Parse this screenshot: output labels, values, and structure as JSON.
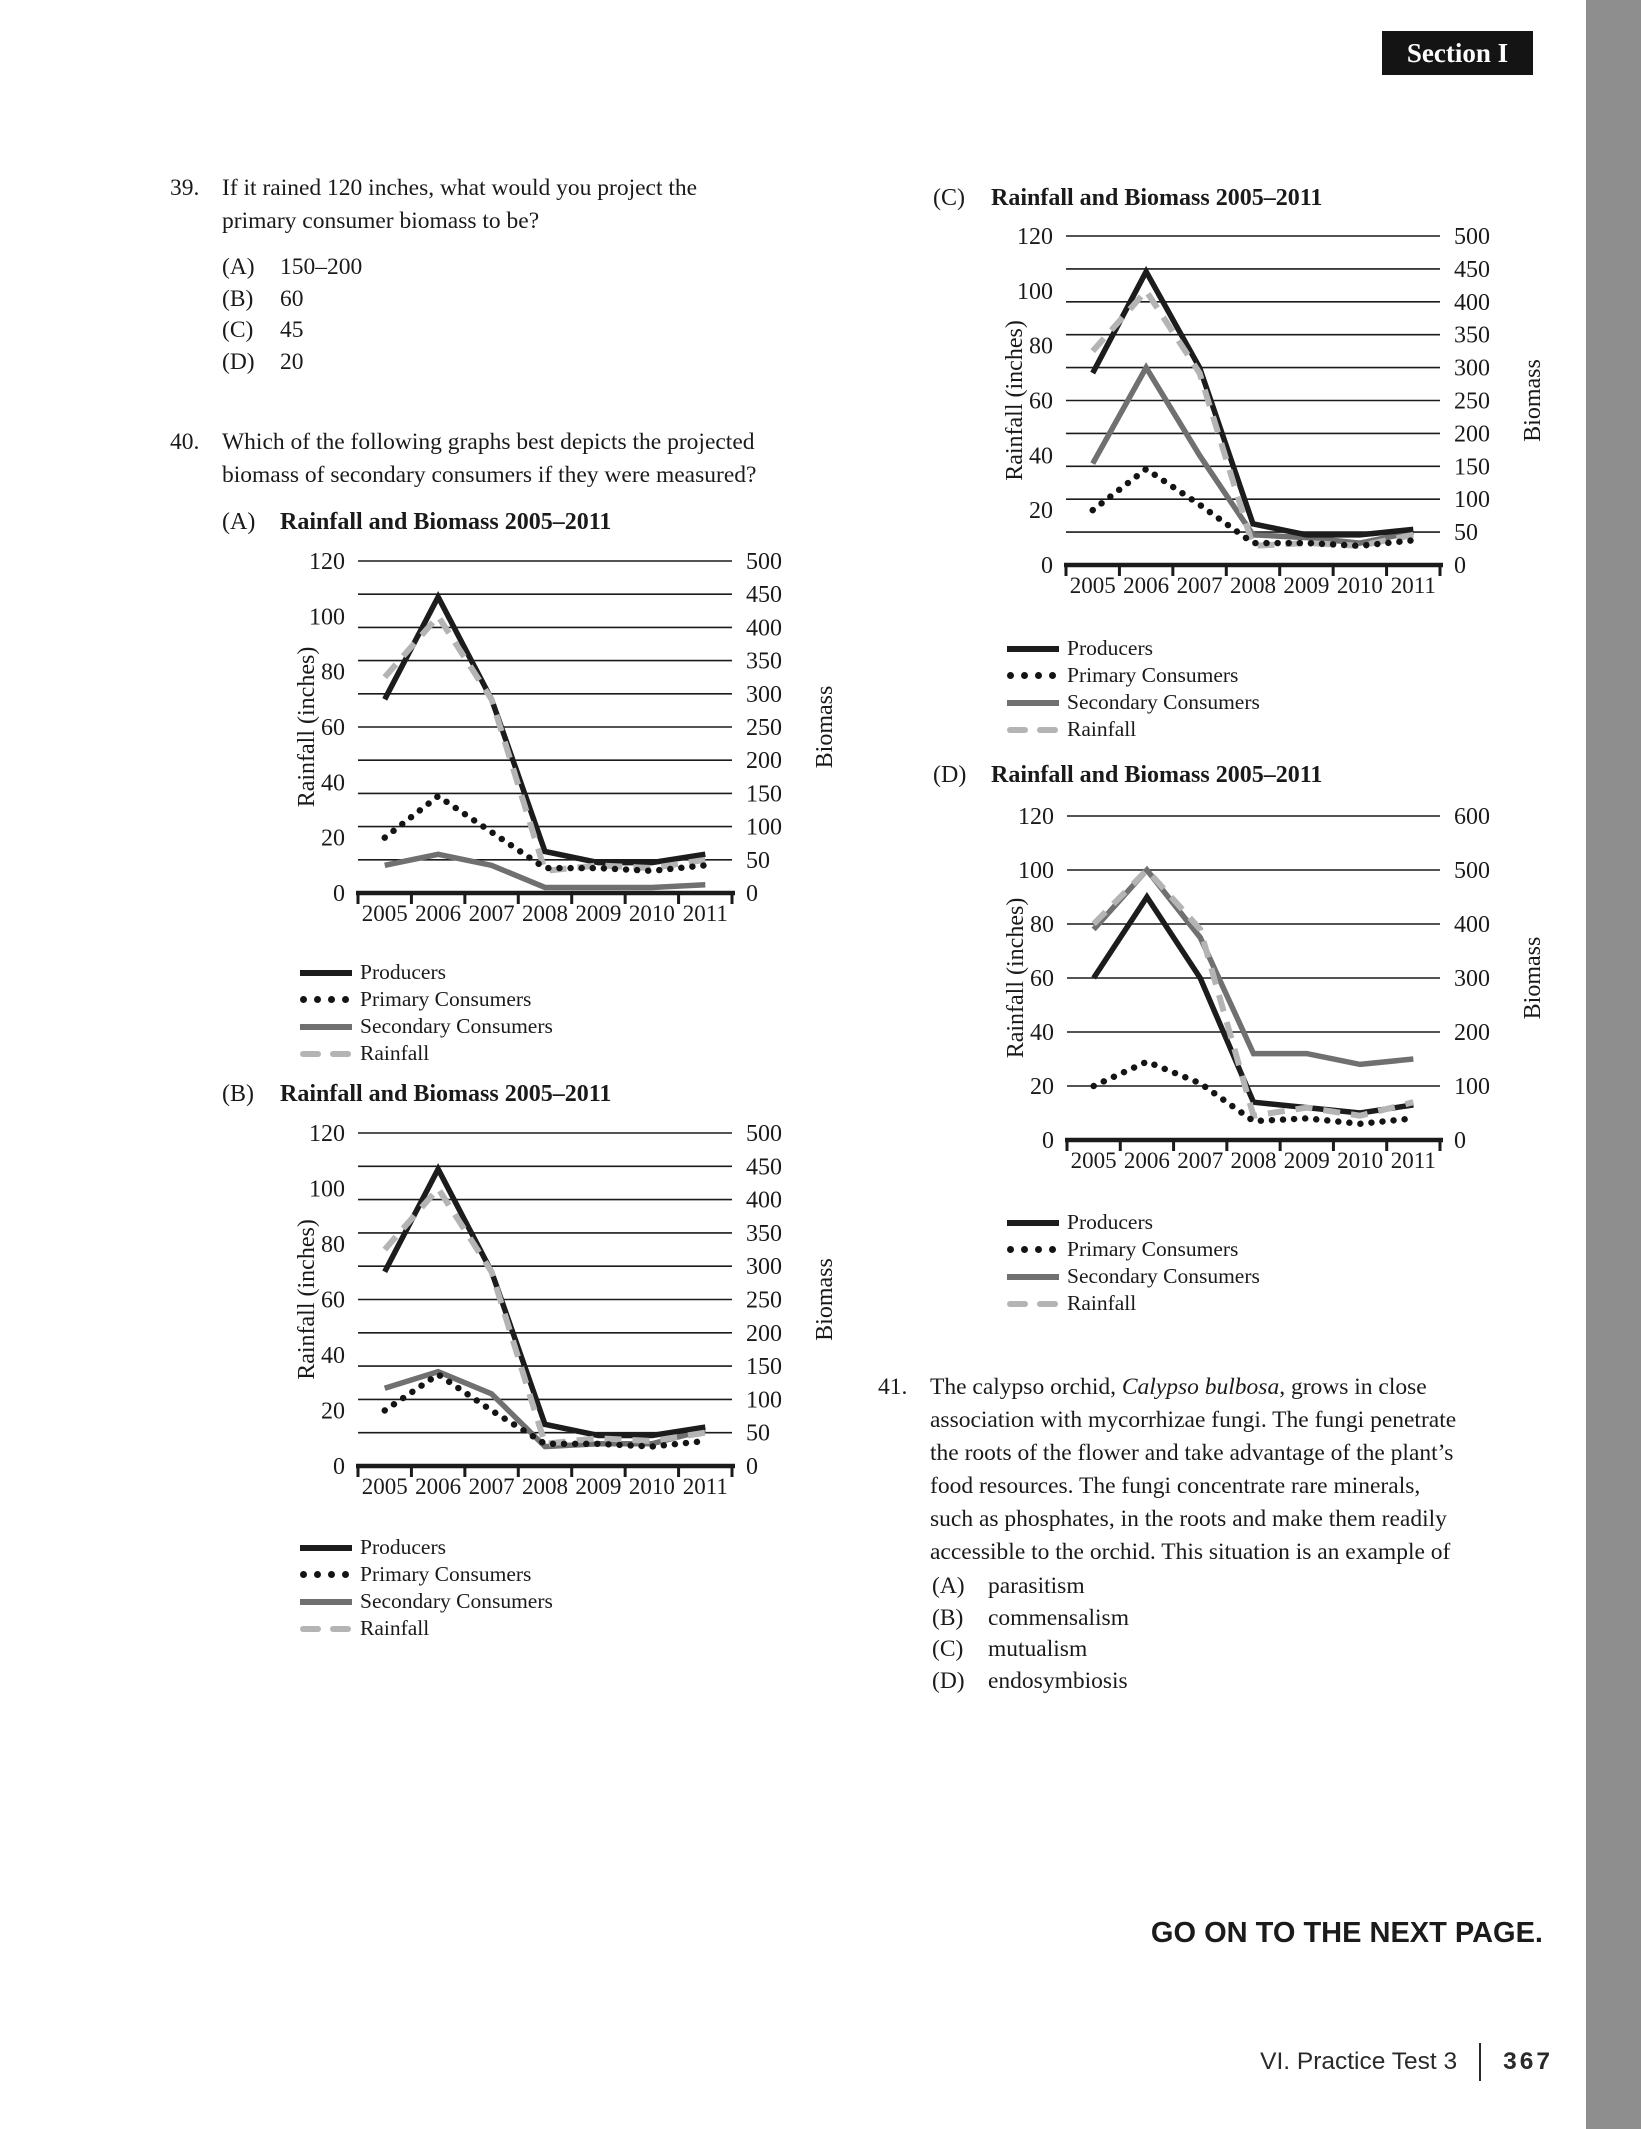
{
  "badge": {
    "text": "Section I"
  },
  "questions": {
    "q39": {
      "number": "39.",
      "lines": [
        "If it rained 120 inches, what would you project the",
        "primary consumer biomass to be?"
      ],
      "options": [
        {
          "letter": "(A)",
          "text": "150–200"
        },
        {
          "letter": "(B)",
          "text": "60"
        },
        {
          "letter": "(C)",
          "text": "45"
        },
        {
          "letter": "(D)",
          "text": "20"
        }
      ]
    },
    "q40": {
      "number": "40.",
      "lines": [
        "Which of the following graphs best depicts the projected",
        "biomass of secondary consumers if they were measured?"
      ]
    },
    "q41": {
      "number": "41.",
      "lines_parts": [
        [
          [
            "The calypso orchid, ",
            false
          ],
          [
            "Calypso bulbosa",
            true
          ],
          [
            ", grows in close",
            false
          ]
        ],
        [
          [
            "association with mycorrhizae fungi. The fungi penetrate",
            false
          ]
        ],
        [
          [
            "the roots of the flower and take advantage of the plant’s",
            false
          ]
        ],
        [
          [
            "food resources. The fungi concentrate rare minerals,",
            false
          ]
        ],
        [
          [
            "such as phosphates, in the roots and make them readily",
            false
          ]
        ],
        [
          [
            "accessible to the orchid. This situation is an example of",
            false
          ]
        ]
      ],
      "options": [
        {
          "letter": "(A)",
          "text": "parasitism"
        },
        {
          "letter": "(B)",
          "text": "commensalism"
        },
        {
          "letter": "(C)",
          "text": "mutualism"
        },
        {
          "letter": "(D)",
          "text": "endosymbiosis"
        }
      ]
    }
  },
  "legend_labels": [
    "Producers",
    "Primary Consumers",
    "Secondary Consumers",
    "Rainfall"
  ],
  "series_colors": {
    "producers": "#1c1c1c",
    "primary": "#141414",
    "secondary": "#707070",
    "rainfall": "#b4b4b4"
  },
  "chart_data": [
    {
      "id": "A",
      "option_letter": "(A)",
      "type": "line",
      "title": "Rainfall and Biomass 2005–2011",
      "x_categories": [
        "2005",
        "2006",
        "2007",
        "2008",
        "2009",
        "2010",
        "2011"
      ],
      "left_axis": {
        "label": "Rainfall (inches)",
        "min": 0,
        "max": 120,
        "ticks": [
          0,
          20,
          40,
          60,
          80,
          100,
          120
        ]
      },
      "right_axis": {
        "label": "Biomass",
        "min": 0,
        "max": 500,
        "ticks": [
          0,
          50,
          100,
          150,
          200,
          250,
          300,
          350,
          400,
          450,
          500
        ]
      },
      "grid_step_inches": 12,
      "units_note": "series values expressed in left-axis inches scale",
      "series": [
        {
          "name": "Producers",
          "style": "solid-black",
          "values": [
            70,
            107,
            70,
            15,
            11,
            11,
            14
          ]
        },
        {
          "name": "Primary Consumers",
          "style": "dotted-black",
          "values": [
            20,
            35,
            22,
            9,
            9,
            8,
            10
          ]
        },
        {
          "name": "Secondary Consumers",
          "style": "solid-gray",
          "values": [
            10,
            14,
            10,
            2,
            2,
            2,
            3
          ]
        },
        {
          "name": "Rainfall",
          "style": "dashed-lightgray",
          "values": [
            78,
            100,
            70,
            8,
            10,
            9,
            12
          ]
        }
      ]
    },
    {
      "id": "B",
      "option_letter": "(B)",
      "type": "line",
      "title": "Rainfall and Biomass 2005–2011",
      "x_categories": [
        "2005",
        "2006",
        "2007",
        "2008",
        "2009",
        "2010",
        "2011"
      ],
      "left_axis": {
        "label": "Rainfall (inches)",
        "min": 0,
        "max": 120,
        "ticks": [
          0,
          20,
          40,
          60,
          80,
          100,
          120
        ]
      },
      "right_axis": {
        "label": "Biomass",
        "min": 0,
        "max": 500,
        "ticks": [
          0,
          50,
          100,
          150,
          200,
          250,
          300,
          350,
          400,
          450,
          500
        ]
      },
      "grid_step_inches": 12,
      "units_note": "series values expressed in left-axis inches scale",
      "series": [
        {
          "name": "Producers",
          "style": "solid-black",
          "values": [
            70,
            107,
            70,
            15,
            11,
            11,
            14
          ]
        },
        {
          "name": "Primary Consumers",
          "style": "dotted-black",
          "values": [
            20,
            33,
            20,
            8,
            8,
            7,
            9
          ]
        },
        {
          "name": "Secondary Consumers",
          "style": "solid-gray",
          "values": [
            28,
            34,
            26,
            7,
            8,
            8,
            13
          ]
        },
        {
          "name": "Rainfall",
          "style": "dashed-lightgray",
          "values": [
            78,
            100,
            70,
            8,
            10,
            9,
            12
          ]
        }
      ]
    },
    {
      "id": "C",
      "option_letter": "(C)",
      "type": "line",
      "title": "Rainfall and Biomass 2005–2011",
      "x_categories": [
        "2005",
        "2006",
        "2007",
        "2008",
        "2009",
        "2010",
        "2011"
      ],
      "left_axis": {
        "label": "Rainfall (inches)",
        "min": 0,
        "max": 120,
        "ticks": [
          0,
          20,
          40,
          60,
          80,
          100,
          120
        ]
      },
      "right_axis": {
        "label": "Biomass",
        "min": 0,
        "max": 500,
        "ticks": [
          0,
          50,
          100,
          150,
          200,
          250,
          300,
          350,
          400,
          450,
          500
        ]
      },
      "grid_step_inches": 12,
      "units_note": "series values expressed in left-axis inches scale",
      "series": [
        {
          "name": "Producers",
          "style": "solid-black",
          "values": [
            70,
            107,
            72,
            15,
            11,
            11,
            13
          ]
        },
        {
          "name": "Primary Consumers",
          "style": "dotted-black",
          "values": [
            20,
            35,
            22,
            8,
            8,
            7,
            9
          ]
        },
        {
          "name": "Secondary Consumers",
          "style": "solid-gray",
          "values": [
            37,
            72,
            40,
            11,
            10,
            8,
            12
          ]
        },
        {
          "name": "Rainfall",
          "style": "dashed-lightgray",
          "values": [
            78,
            100,
            70,
            7,
            8,
            7,
            11
          ]
        }
      ]
    },
    {
      "id": "D",
      "option_letter": "(D)",
      "type": "line",
      "title": "Rainfall and Biomass 2005–2011",
      "x_categories": [
        "2005",
        "2006",
        "2007",
        "2008",
        "2009",
        "2010",
        "2011"
      ],
      "left_axis": {
        "label": "Rainfall (inches)",
        "min": 0,
        "max": 120,
        "ticks": [
          0,
          20,
          40,
          60,
          80,
          100,
          120
        ]
      },
      "right_axis": {
        "label": "Biomass",
        "min": 0,
        "max": 600,
        "ticks": [
          0,
          100,
          200,
          300,
          400,
          500,
          600
        ]
      },
      "grid_step_inches": 20,
      "units_note": "series values expressed in left-axis inches scale",
      "series": [
        {
          "name": "Producers",
          "style": "solid-black",
          "values": [
            60,
            90,
            60,
            14,
            12,
            10,
            13
          ]
        },
        {
          "name": "Primary Consumers",
          "style": "dotted-black",
          "values": [
            20,
            29,
            21,
            7,
            8,
            6,
            8
          ]
        },
        {
          "name": "Secondary Consumers",
          "style": "solid-gray",
          "values": [
            78,
            100,
            75,
            32,
            32,
            28,
            30
          ]
        },
        {
          "name": "Rainfall",
          "style": "dashed-lightgray",
          "values": [
            80,
            100,
            78,
            9,
            12,
            9,
            14
          ]
        }
      ]
    }
  ],
  "footer": {
    "go_on": "GO ON TO THE NEXT PAGE.",
    "label": "VI.  Practice Test 3",
    "page_number": "367"
  }
}
